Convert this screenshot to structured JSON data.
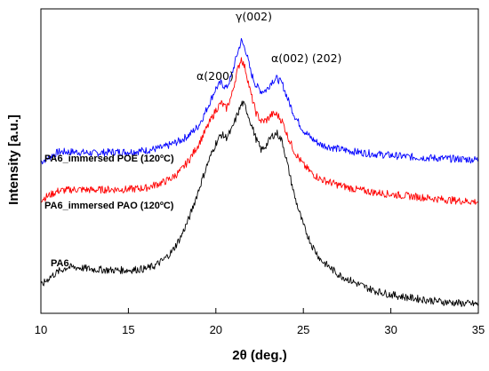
{
  "chart_data": {
    "type": "line",
    "title": "",
    "xlabel": "2θ (deg.)",
    "ylabel": "Intensity [a.u.]",
    "xlim": [
      10,
      35
    ],
    "ylim": [
      0,
      100
    ],
    "x_ticks": [
      10,
      15,
      20,
      25,
      30,
      35
    ],
    "y_ticks": [],
    "grid": false,
    "legend": "none",
    "series": [
      {
        "name": "PA6_immersed POE (120ºC)",
        "color": "#0000ff",
        "x": [
          10,
          11,
          12,
          13,
          14,
          15,
          16,
          17,
          18,
          18.5,
          19,
          19.3,
          19.6,
          20,
          20.3,
          20.6,
          20.9,
          21.2,
          21.45,
          21.7,
          22,
          22.3,
          22.6,
          22.9,
          23.2,
          23.5,
          23.8,
          24.1,
          24.5,
          25,
          25.5,
          26,
          27,
          28,
          29,
          30,
          31,
          32,
          33,
          34,
          35
        ],
        "values": [
          50,
          53.5,
          53.5,
          53,
          53.5,
          53.5,
          54,
          55,
          57.5,
          59.5,
          62.5,
          66,
          70,
          75.5,
          77.5,
          75.5,
          80,
          87,
          92,
          89,
          81,
          76.5,
          74.5,
          75,
          78,
          79,
          77,
          72,
          66,
          61,
          58,
          56,
          54.5,
          53.5,
          52.8,
          52.3,
          51.8,
          51.5,
          51.2,
          51,
          50.8
        ]
      },
      {
        "name": "PA6_immersed PAO (120ºC)",
        "color": "#ff0000",
        "x": [
          10,
          11,
          12,
          13,
          14,
          15,
          16,
          17,
          17.5,
          18,
          18.5,
          19,
          19.5,
          20,
          20.3,
          20.6,
          20.9,
          21.2,
          21.45,
          21.7,
          22,
          22.3,
          22.6,
          22.9,
          23.2,
          23.5,
          23.8,
          24.1,
          24.5,
          25,
          25.5,
          26,
          27,
          28,
          29,
          30,
          31,
          32,
          33,
          34,
          35
        ],
        "values": [
          37,
          40,
          40.5,
          40.3,
          40.5,
          40.5,
          41,
          43,
          44.5,
          47,
          51,
          56,
          62,
          68,
          70.5,
          68.5,
          73,
          81,
          86,
          82,
          73.5,
          67,
          64,
          64.5,
          66.5,
          66.5,
          64,
          59,
          53.5,
          49,
          46,
          44,
          42,
          40.5,
          39.5,
          38.8,
          38.2,
          37.6,
          37,
          36.5,
          36.2
        ]
      },
      {
        "name": "PA6",
        "color": "#000000",
        "x": [
          10,
          10.5,
          11,
          11.5,
          12,
          13,
          14,
          15,
          16,
          16.5,
          17,
          17.5,
          18,
          18.5,
          19,
          19.5,
          20,
          20.3,
          20.6,
          20.9,
          21.2,
          21.5,
          21.7,
          22,
          22.3,
          22.6,
          22.9,
          23.2,
          23.5,
          23.8,
          24.1,
          24.5,
          25,
          25.5,
          26,
          27,
          28,
          29,
          30,
          31,
          32,
          33,
          34,
          35
        ],
        "values": [
          7,
          10,
          12,
          13.5,
          13.5,
          12.8,
          12.5,
          12.5,
          13,
          14,
          16,
          19,
          24,
          31,
          40,
          49,
          56.5,
          59.5,
          58.5,
          61,
          66,
          70.5,
          69,
          63.5,
          58,
          54,
          56,
          59,
          60,
          57,
          49,
          38,
          28,
          21,
          16,
          11,
          8,
          5.5,
          4,
          3,
          2.2,
          1.5,
          1,
          0.7
        ]
      }
    ],
    "series_labels": [
      "PA6_immersed POE (120ºC)",
      "PA6_immersed PAO (120ºC)",
      "PA6"
    ],
    "annotations": [
      "α(200)",
      "γ(002)",
      "α(002) (202)"
    ]
  }
}
